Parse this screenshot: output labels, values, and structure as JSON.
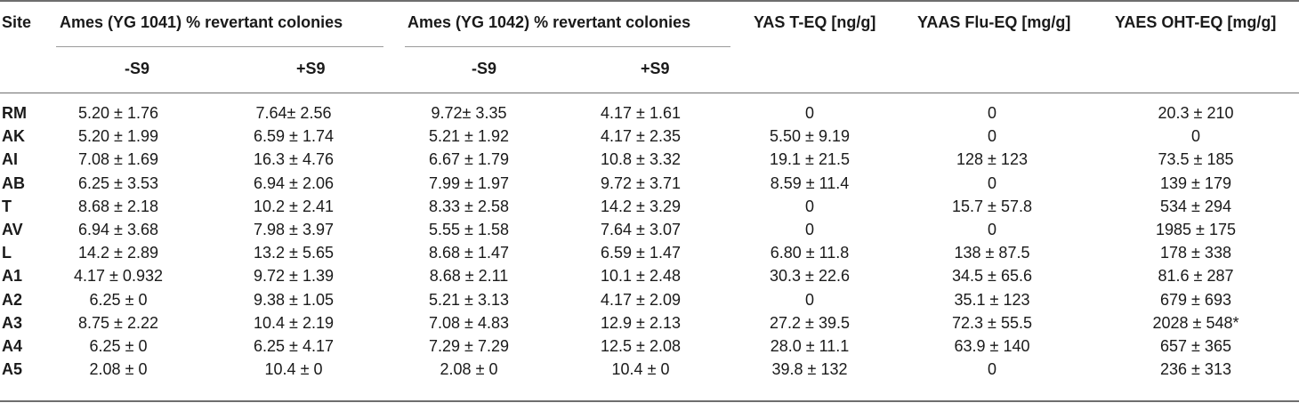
{
  "table": {
    "headers": {
      "site": "Site",
      "ames1041": "Ames (YG 1041) % revertant colonies",
      "ames1042": "Ames (YG 1042) % revertant colonies",
      "yas": "YAS T-EQ [ng/g]",
      "yaas": "YAAS Flu-EQ [mg/g]",
      "yaes": "YAES OHT-EQ [mg/g]",
      "minus_s9": "-S9",
      "plus_s9": "+S9"
    },
    "rows": [
      {
        "site": "RM",
        "a1041_m": "5.20 ± 1.76",
        "a1041_p": "7.64± 2.56",
        "a1042_m": "9.72± 3.35",
        "a1042_p": "4.17 ± 1.61",
        "yas": "0",
        "yaas": "0",
        "yaes": "20.3 ± 210"
      },
      {
        "site": "AK",
        "a1041_m": "5.20 ± 1.99",
        "a1041_p": "6.59 ± 1.74",
        "a1042_m": "5.21 ± 1.92",
        "a1042_p": "4.17 ± 2.35",
        "yas": "5.50 ± 9.19",
        "yaas": "0",
        "yaes": "0"
      },
      {
        "site": "AI",
        "a1041_m": "7.08 ± 1.69",
        "a1041_p": "16.3 ± 4.76",
        "a1042_m": "6.67 ± 1.79",
        "a1042_p": "10.8 ± 3.32",
        "yas": "19.1 ± 21.5",
        "yaas": "128 ± 123",
        "yaes": "73.5 ± 185"
      },
      {
        "site": "AB",
        "a1041_m": "6.25 ± 3.53",
        "a1041_p": "6.94 ± 2.06",
        "a1042_m": "7.99 ± 1.97",
        "a1042_p": "9.72 ± 3.71",
        "yas": "8.59 ± 11.4",
        "yaas": "0",
        "yaes": "139 ± 179"
      },
      {
        "site": "T",
        "a1041_m": "8.68 ± 2.18",
        "a1041_p": "10.2 ± 2.41",
        "a1042_m": "8.33 ± 2.58",
        "a1042_p": "14.2 ± 3.29",
        "yas": "0",
        "yaas": "15.7 ± 57.8",
        "yaes": "534 ± 294"
      },
      {
        "site": "AV",
        "a1041_m": "6.94 ± 3.68",
        "a1041_p": "7.98 ± 3.97",
        "a1042_m": "5.55 ± 1.58",
        "a1042_p": "7.64 ± 3.07",
        "yas": "0",
        "yaas": "0",
        "yaes": "1985 ± 175"
      },
      {
        "site": "L",
        "a1041_m": "14.2 ± 2.89",
        "a1041_p": "13.2 ± 5.65",
        "a1042_m": "8.68 ± 1.47",
        "a1042_p": "6.59 ± 1.47",
        "yas": "6.80 ± 11.8",
        "yaas": "138 ± 87.5",
        "yaes": "178 ± 338"
      },
      {
        "site": "A1",
        "a1041_m": "4.17 ± 0.932",
        "a1041_p": "9.72 ± 1.39",
        "a1042_m": "8.68 ± 2.11",
        "a1042_p": "10.1 ± 2.48",
        "yas": "30.3 ± 22.6",
        "yaas": "34.5 ± 65.6",
        "yaes": "81.6 ± 287"
      },
      {
        "site": "A2",
        "a1041_m": "6.25 ± 0",
        "a1041_p": "9.38 ± 1.05",
        "a1042_m": "5.21 ± 3.13",
        "a1042_p": "4.17 ± 2.09",
        "yas": "0",
        "yaas": "35.1 ± 123",
        "yaes": "679 ± 693"
      },
      {
        "site": "A3",
        "a1041_m": "8.75 ± 2.22",
        "a1041_p": "10.4 ± 2.19",
        "a1042_m": "7.08 ± 4.83",
        "a1042_p": "12.9 ± 2.13",
        "yas": "27.2 ± 39.5",
        "yaas": "72.3 ± 55.5",
        "yaes": "2028 ± 548*"
      },
      {
        "site": "A4",
        "a1041_m": "6.25 ± 0",
        "a1041_p": "6.25 ± 4.17",
        "a1042_m": "7.29 ± 7.29",
        "a1042_p": "12.5 ± 2.08",
        "yas": "28.0 ± 11.1",
        "yaas": "63.9 ± 140",
        "yaes": "657 ± 365"
      },
      {
        "site": "A5",
        "a1041_m": "2.08 ± 0",
        "a1041_p": "10.4 ± 0",
        "a1042_m": "2.08 ± 0",
        "a1042_p": "10.4 ± 0",
        "yas": "39.8 ± 132",
        "yaas": "0",
        "yaes": "236 ± 313"
      }
    ]
  }
}
